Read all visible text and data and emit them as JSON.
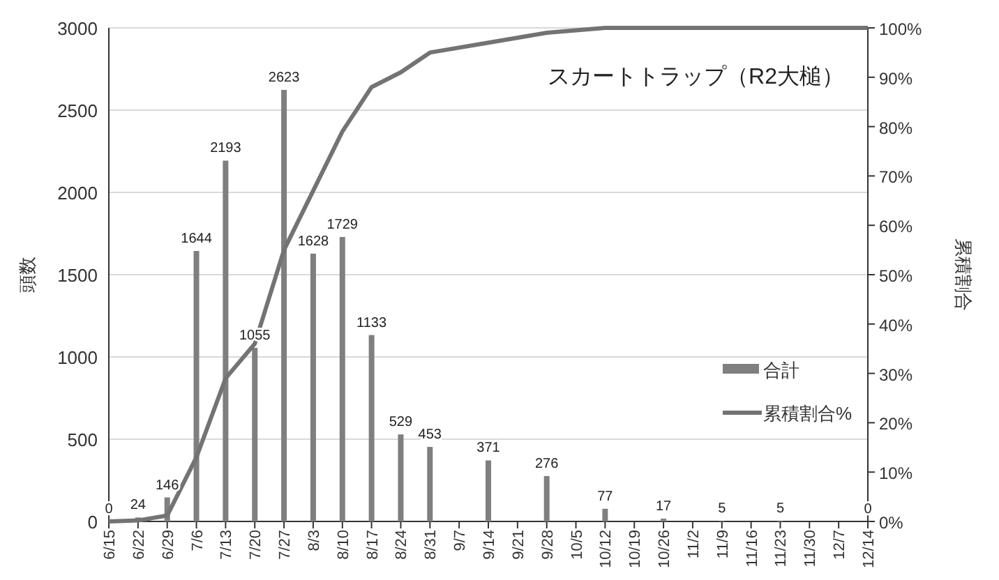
{
  "chart_data": {
    "type": "bar",
    "title": "スカートトラップ（R2大槌）",
    "categories": [
      "6/15",
      "6/22",
      "6/29",
      "7/6",
      "7/13",
      "7/20",
      "7/27",
      "8/3",
      "8/10",
      "8/17",
      "8/24",
      "8/31",
      "9/7",
      "9/14",
      "9/21",
      "9/28",
      "10/5",
      "10/12",
      "10/19",
      "10/26",
      "11/2",
      "11/9",
      "11/16",
      "11/23",
      "11/30",
      "12/7",
      "12/14"
    ],
    "series": [
      {
        "name": "合計",
        "color": "#7f7f7f",
        "values": [
          0,
          24,
          146,
          1644,
          2193,
          1055,
          2623,
          1628,
          1729,
          1133,
          529,
          453,
          null,
          371,
          null,
          276,
          null,
          77,
          null,
          17,
          null,
          5,
          null,
          5,
          null,
          null,
          0
        ],
        "value_labels": [
          "0",
          "24",
          "146",
          "1644",
          "2193",
          "1055",
          "2623",
          "1628",
          "1729",
          "1133",
          "529",
          "453",
          null,
          "371",
          null,
          "276",
          null,
          "77",
          null,
          "17",
          null,
          "5",
          null,
          "5",
          null,
          null,
          "0"
        ]
      },
      {
        "name": "累積割合%",
        "type": "line",
        "axis": "y2",
        "color": "#737373",
        "values": [
          0,
          0.2,
          1.2,
          13,
          29,
          36,
          55,
          67,
          79,
          88,
          91,
          95,
          null,
          97,
          null,
          99,
          null,
          100,
          null,
          100,
          null,
          100,
          null,
          100,
          null,
          null,
          100
        ]
      }
    ],
    "ylabel": "頭数",
    "y2label": "累積割合",
    "ylim": [
      0,
      3000
    ],
    "yticks": [
      0,
      500,
      1000,
      1500,
      2000,
      2500,
      3000
    ],
    "y2lim": [
      0,
      100
    ],
    "y2ticks": [
      {
        "value": 0,
        "label": "0%"
      },
      {
        "value": 10,
        "label": "10%"
      },
      {
        "value": 20,
        "label": "20%"
      },
      {
        "value": 30,
        "label": "30%"
      },
      {
        "value": 40,
        "label": "40%"
      },
      {
        "value": 50,
        "label": "50%"
      },
      {
        "value": 60,
        "label": "60%"
      },
      {
        "value": 70,
        "label": "70%"
      },
      {
        "value": 80,
        "label": "80%"
      },
      {
        "value": 90,
        "label": "90%"
      },
      {
        "value": 100,
        "label": "100%"
      }
    ],
    "grid": "y",
    "legend": "right",
    "marker": "none",
    "line_style": "solid"
  }
}
